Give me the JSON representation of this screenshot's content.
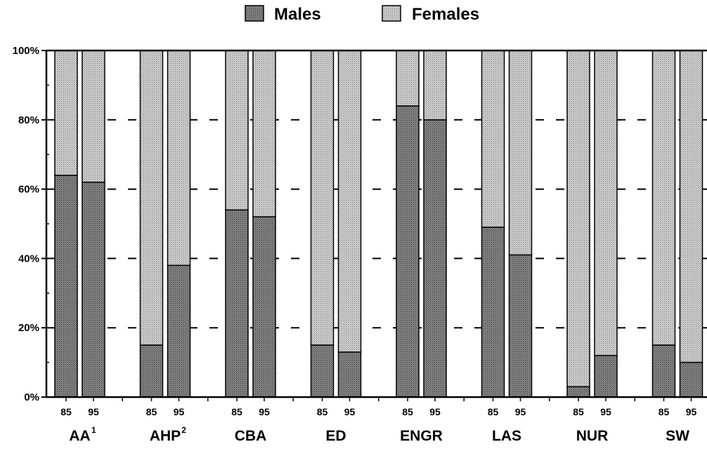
{
  "chart_data": {
    "type": "bar",
    "stacked": true,
    "normalized": true,
    "legend_position": "top-center",
    "grid": "dashed-horizontal",
    "ylim": [
      0,
      100
    ],
    "y_ticks": [
      "0%",
      "20%",
      "40%",
      "60%",
      "80%",
      "100%"
    ],
    "y_tick_values": [
      0,
      20,
      40,
      60,
      80,
      100
    ],
    "series": [
      {
        "name": "Males",
        "color": "#8f8f8f"
      },
      {
        "name": "Females",
        "color": "#cfcfcf"
      }
    ],
    "groups": [
      {
        "label": "AA",
        "sup": "1",
        "bars": [
          {
            "year": "85",
            "male": 64
          },
          {
            "year": "95",
            "male": 62
          }
        ]
      },
      {
        "label": "AHP",
        "sup": "2",
        "bars": [
          {
            "year": "85",
            "male": 15
          },
          {
            "year": "95",
            "male": 38
          }
        ]
      },
      {
        "label": "CBA",
        "sup": "",
        "bars": [
          {
            "year": "85",
            "male": 54
          },
          {
            "year": "95",
            "male": 52
          }
        ]
      },
      {
        "label": "ED",
        "sup": "",
        "bars": [
          {
            "year": "85",
            "male": 15
          },
          {
            "year": "95",
            "male": 13
          }
        ]
      },
      {
        "label": "ENGR",
        "sup": "",
        "bars": [
          {
            "year": "85",
            "male": 84
          },
          {
            "year": "95",
            "male": 80
          }
        ]
      },
      {
        "label": "LAS",
        "sup": "",
        "bars": [
          {
            "year": "85",
            "male": 49
          },
          {
            "year": "95",
            "male": 41
          }
        ]
      },
      {
        "label": "NUR",
        "sup": "",
        "bars": [
          {
            "year": "85",
            "male": 3
          },
          {
            "year": "95",
            "male": 12
          }
        ]
      },
      {
        "label": "SW",
        "sup": "",
        "bars": [
          {
            "year": "85",
            "male": 15
          },
          {
            "year": "95",
            "male": 10
          }
        ]
      }
    ]
  }
}
